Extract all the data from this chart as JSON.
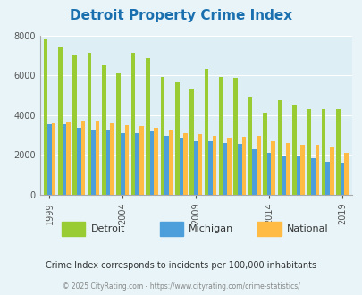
{
  "title": "Detroit Property Crime Index",
  "title_color": "#1a6faf",
  "subtitle": "Crime Index corresponds to incidents per 100,000 inhabitants",
  "footer": "© 2025 CityRating.com - https://www.cityrating.com/crime-statistics/",
  "years": [
    1999,
    2000,
    2001,
    2002,
    2003,
    2004,
    2005,
    2006,
    2007,
    2008,
    2009,
    2010,
    2011,
    2012,
    2013,
    2014,
    2015,
    2016,
    2017,
    2018,
    2019
  ],
  "detroit": [
    7800,
    7400,
    7000,
    7150,
    6500,
    6100,
    7150,
    6850,
    5900,
    5650,
    5300,
    6300,
    5900,
    5850,
    4900,
    4100,
    4750,
    4500,
    4300,
    4300,
    4300
  ],
  "michigan": [
    3550,
    3550,
    3350,
    3250,
    3250,
    3100,
    3100,
    3200,
    2950,
    2850,
    2700,
    2700,
    2600,
    2550,
    2300,
    2100,
    1950,
    1900,
    1850,
    1650,
    1600
  ],
  "national": [
    3600,
    3650,
    3700,
    3700,
    3600,
    3500,
    3450,
    3350,
    3250,
    3100,
    3050,
    2950,
    2850,
    2900,
    2950,
    2700,
    2600,
    2500,
    2500,
    2350,
    2100
  ],
  "detroit_color": "#99cc33",
  "michigan_color": "#4d9fdb",
  "national_color": "#ffbb44",
  "bg_color": "#e8f4f8",
  "plot_bg_color": "#ddeef5",
  "ylim": [
    0,
    8000
  ],
  "yticks": [
    0,
    2000,
    4000,
    6000,
    8000
  ],
  "xtick_years": [
    1999,
    2004,
    2009,
    2014,
    2019
  ],
  "bar_width": 0.28,
  "legend_labels": [
    "Detroit",
    "Michigan",
    "National"
  ],
  "legend_colors": [
    "#99cc33",
    "#4d9fdb",
    "#ffbb44"
  ]
}
